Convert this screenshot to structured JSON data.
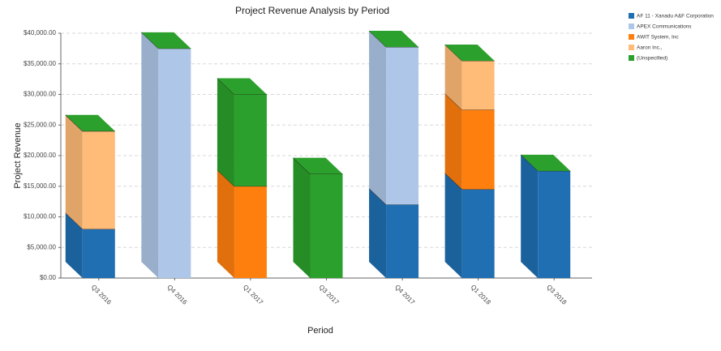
{
  "chart_data": {
    "type": "bar3d_stacked",
    "title": "Project Revenue Analysis by Period",
    "x_label": "Period",
    "y_label": "Project Revenue",
    "categories": [
      "Q3 2016",
      "Q4 2016",
      "Q1 2017",
      "Q3 2017",
      "Q4 2017",
      "Q1 2018",
      "Q3 2018"
    ],
    "series": [
      {
        "name": "AF 11 - Xanadu A&F Corporation",
        "color": "#1f6fb2",
        "values": [
          8000,
          0,
          0,
          0,
          12000,
          14500,
          17500
        ]
      },
      {
        "name": "APEX Communications",
        "color": "#aec7e8",
        "values": [
          0,
          37500,
          0,
          0,
          25750,
          0,
          0
        ]
      },
      {
        "name": "AWIT System, Inc",
        "color": "#ff7f0e",
        "values": [
          0,
          0,
          15000,
          0,
          0,
          13000,
          0
        ]
      },
      {
        "name": "Aaron Inc.,",
        "color": "#ffbb78",
        "values": [
          16000,
          0,
          0,
          0,
          0,
          8000,
          0
        ]
      },
      {
        "name": "(Unspecified)",
        "color": "#2ca02c",
        "values": [
          0,
          0,
          15000,
          17000,
          0,
          0,
          0
        ]
      }
    ],
    "ylim": [
      0,
      40000
    ],
    "yticks": [
      {
        "value": 0,
        "label": "$0.00"
      },
      {
        "value": 5000,
        "label": "$5,000.00"
      },
      {
        "value": 10000,
        "label": "$10,000.00"
      },
      {
        "value": 15000,
        "label": "$15,000.00"
      },
      {
        "value": 20000,
        "label": "$20,000.00"
      },
      {
        "value": 25000,
        "label": "$25,000.00"
      },
      {
        "value": 30000,
        "label": "$30,000.00"
      },
      {
        "value": 35000,
        "label": "$35,000.00"
      },
      {
        "value": 40000,
        "label": "$40,000.00"
      }
    ],
    "grid": true,
    "legend": "top-right"
  }
}
